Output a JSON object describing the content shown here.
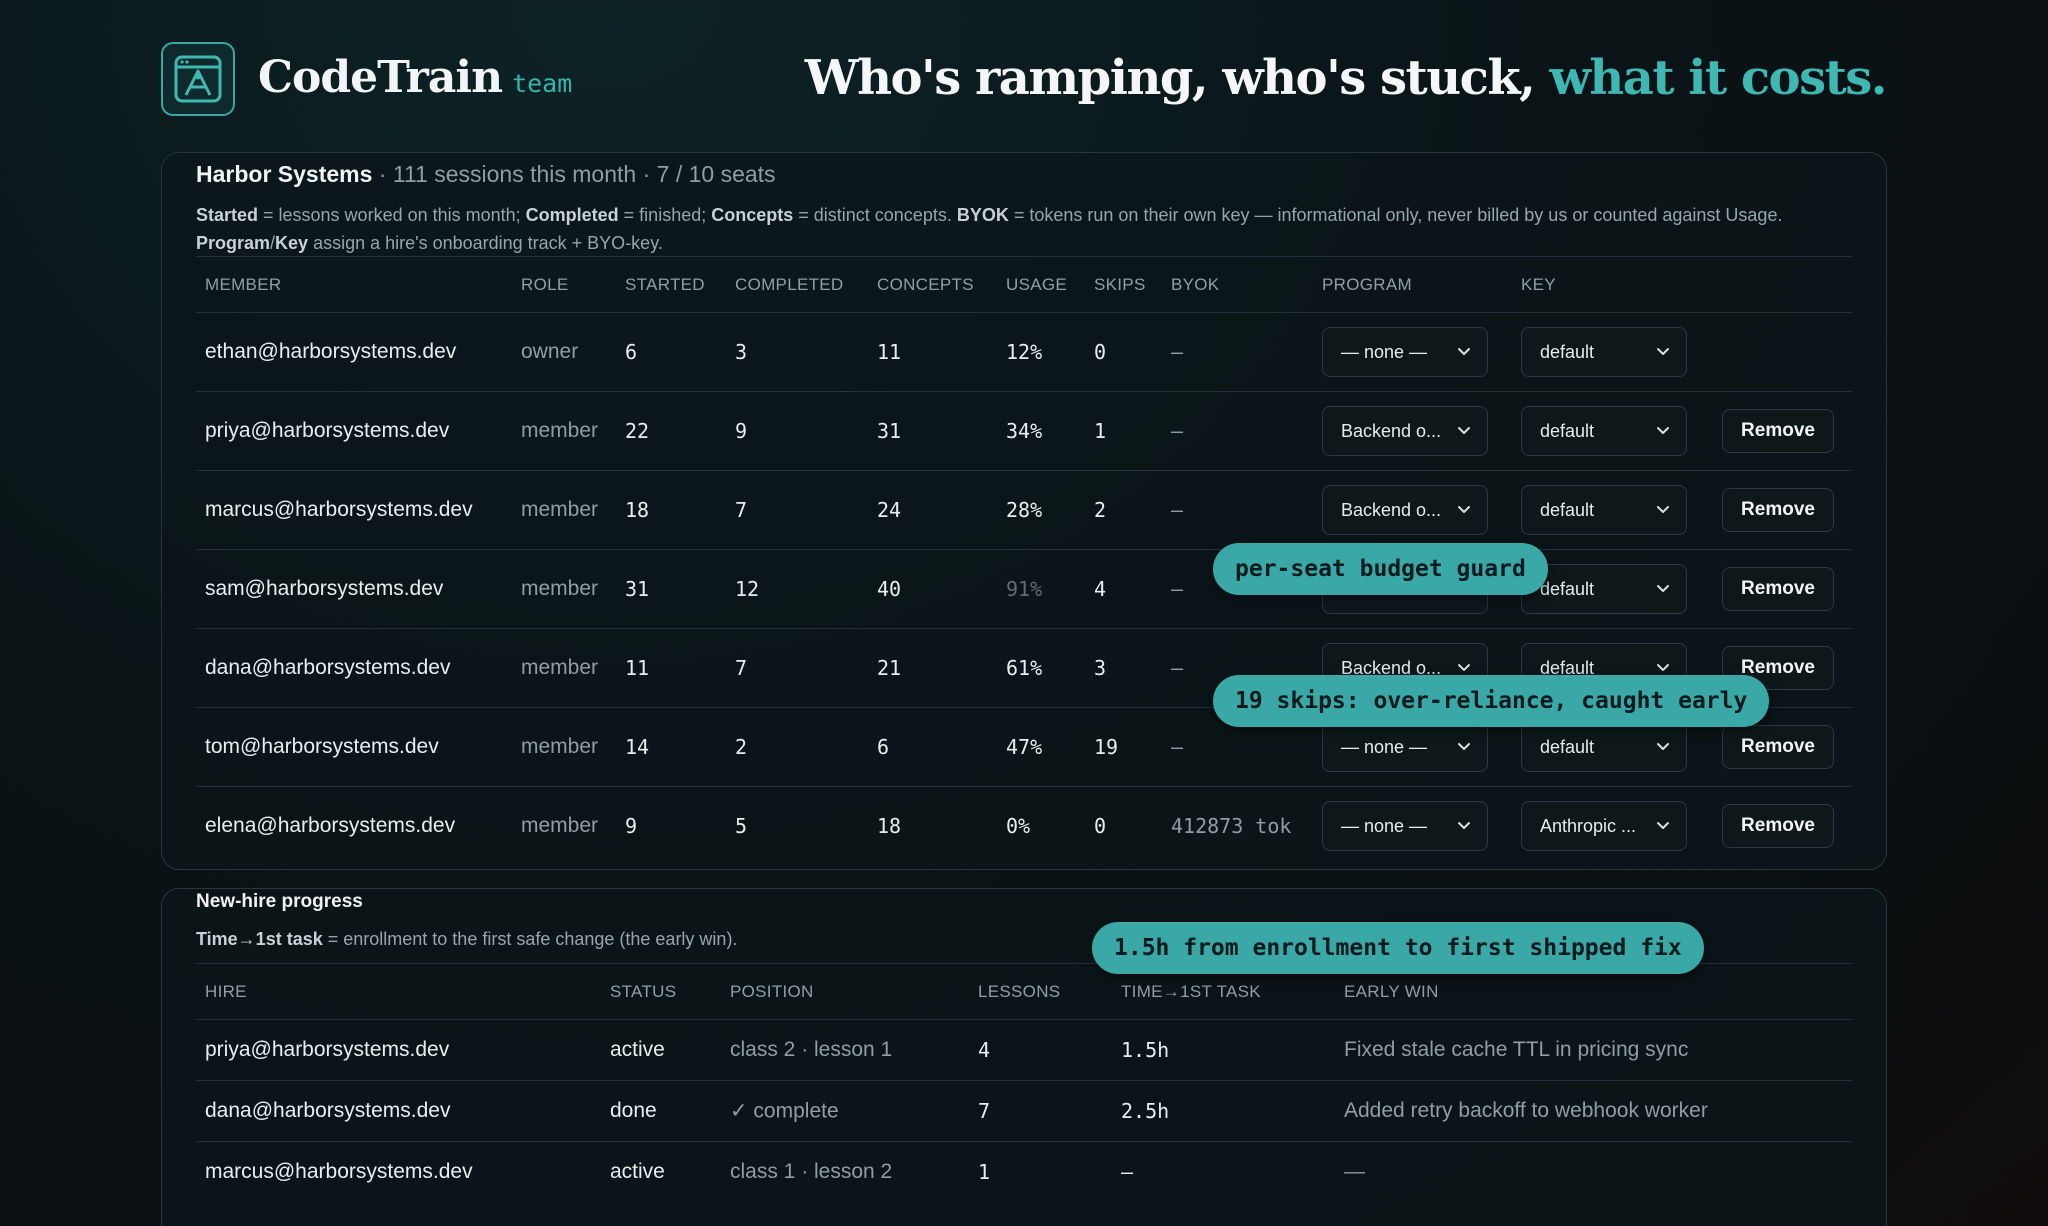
{
  "brand": {
    "name": "CodeTrain",
    "sub": "team"
  },
  "tagline": {
    "main": "Who's ramping, who's stuck, ",
    "accent": "what it costs."
  },
  "team": {
    "name": "Harbor Systems",
    "summary": " · 111 sessions this month · 7 / 10 seats",
    "legend_parts": [
      {
        "b": "Started",
        "t": " = lessons worked on this month; "
      },
      {
        "b": "Completed",
        "t": " = finished; "
      },
      {
        "b": "Concepts",
        "t": " = distinct concepts. "
      },
      {
        "b": "BYOK",
        "t": " = tokens run on their own key — informational only, never billed by us or counted against Usage. "
      },
      {
        "b": "Program",
        "t": "/"
      },
      {
        "b": "Key",
        "t": " assign a hire's onboarding track + BYO-key."
      }
    ],
    "columns": [
      "MEMBER",
      "ROLE",
      "STARTED",
      "COMPLETED",
      "CONCEPTS",
      "USAGE",
      "SKIPS",
      "BYOK",
      "PROGRAM",
      "KEY"
    ],
    "remove_label": "Remove",
    "members": [
      {
        "email": "ethan@harborsystems.dev",
        "role": "owner",
        "started": "6",
        "completed": "3",
        "concepts": "11",
        "usage": "12%",
        "skips": "0",
        "byok": "—",
        "program": "— none —",
        "key": "default",
        "removable": false
      },
      {
        "email": "priya@harborsystems.dev",
        "role": "member",
        "started": "22",
        "completed": "9",
        "concepts": "31",
        "usage": "34%",
        "skips": "1",
        "byok": "—",
        "program": "Backend o...",
        "key": "default",
        "removable": true
      },
      {
        "email": "marcus@harborsystems.dev",
        "role": "member",
        "started": "18",
        "completed": "7",
        "concepts": "24",
        "usage": "28%",
        "skips": "2",
        "byok": "—",
        "program": "Backend o...",
        "key": "default",
        "removable": true
      },
      {
        "email": "sam@harborsystems.dev",
        "role": "member",
        "started": "31",
        "completed": "12",
        "concepts": "40",
        "usage": "91%",
        "usage_dim": true,
        "skips": "4",
        "byok": "—",
        "program": "— none —",
        "key": "default",
        "removable": true
      },
      {
        "email": "dana@harborsystems.dev",
        "role": "member",
        "started": "11",
        "completed": "7",
        "concepts": "21",
        "usage": "61%",
        "skips": "3",
        "byok": "—",
        "program": "Backend o...",
        "key": "default",
        "removable": true
      },
      {
        "email": "tom@harborsystems.dev",
        "role": "member",
        "started": "14",
        "completed": "2",
        "concepts": "6",
        "usage": "47%",
        "skips": "19",
        "byok": "—",
        "program": "— none —",
        "key": "default",
        "removable": true
      },
      {
        "email": "elena@harborsystems.dev",
        "role": "member",
        "started": "9",
        "completed": "5",
        "concepts": "18",
        "usage": "0%",
        "skips": "0",
        "byok": "412873 tok",
        "program": "— none —",
        "key": "Anthropic ...",
        "removable": true
      }
    ]
  },
  "callouts": {
    "budget": "per-seat budget guard",
    "skips": "19 skips: over-reliance, caught early",
    "first_fix": "1.5h from enrollment to first shipped fix"
  },
  "progress": {
    "title": "New-hire progress",
    "desc_b": "Time→1st task",
    "desc_t": " = enrollment to the first safe change (the early win).",
    "columns": [
      "HIRE",
      "STATUS",
      "POSITION",
      "LESSONS",
      "TIME→1ST TASK",
      "EARLY WIN"
    ],
    "rows": [
      {
        "hire": "priya@harborsystems.dev",
        "status": "active",
        "position": "class 2 · lesson 1",
        "lessons": "4",
        "time": "1.5h",
        "win": "Fixed stale cache TTL in pricing sync"
      },
      {
        "hire": "dana@harborsystems.dev",
        "status": "done",
        "position": "✓ complete",
        "lessons": "7",
        "time": "2.5h",
        "win": "Added retry backoff to webhook worker"
      },
      {
        "hire": "marcus@harborsystems.dev",
        "status": "active",
        "position": "class 1 · lesson 2",
        "lessons": "1",
        "time": "—",
        "win": "—"
      }
    ]
  }
}
